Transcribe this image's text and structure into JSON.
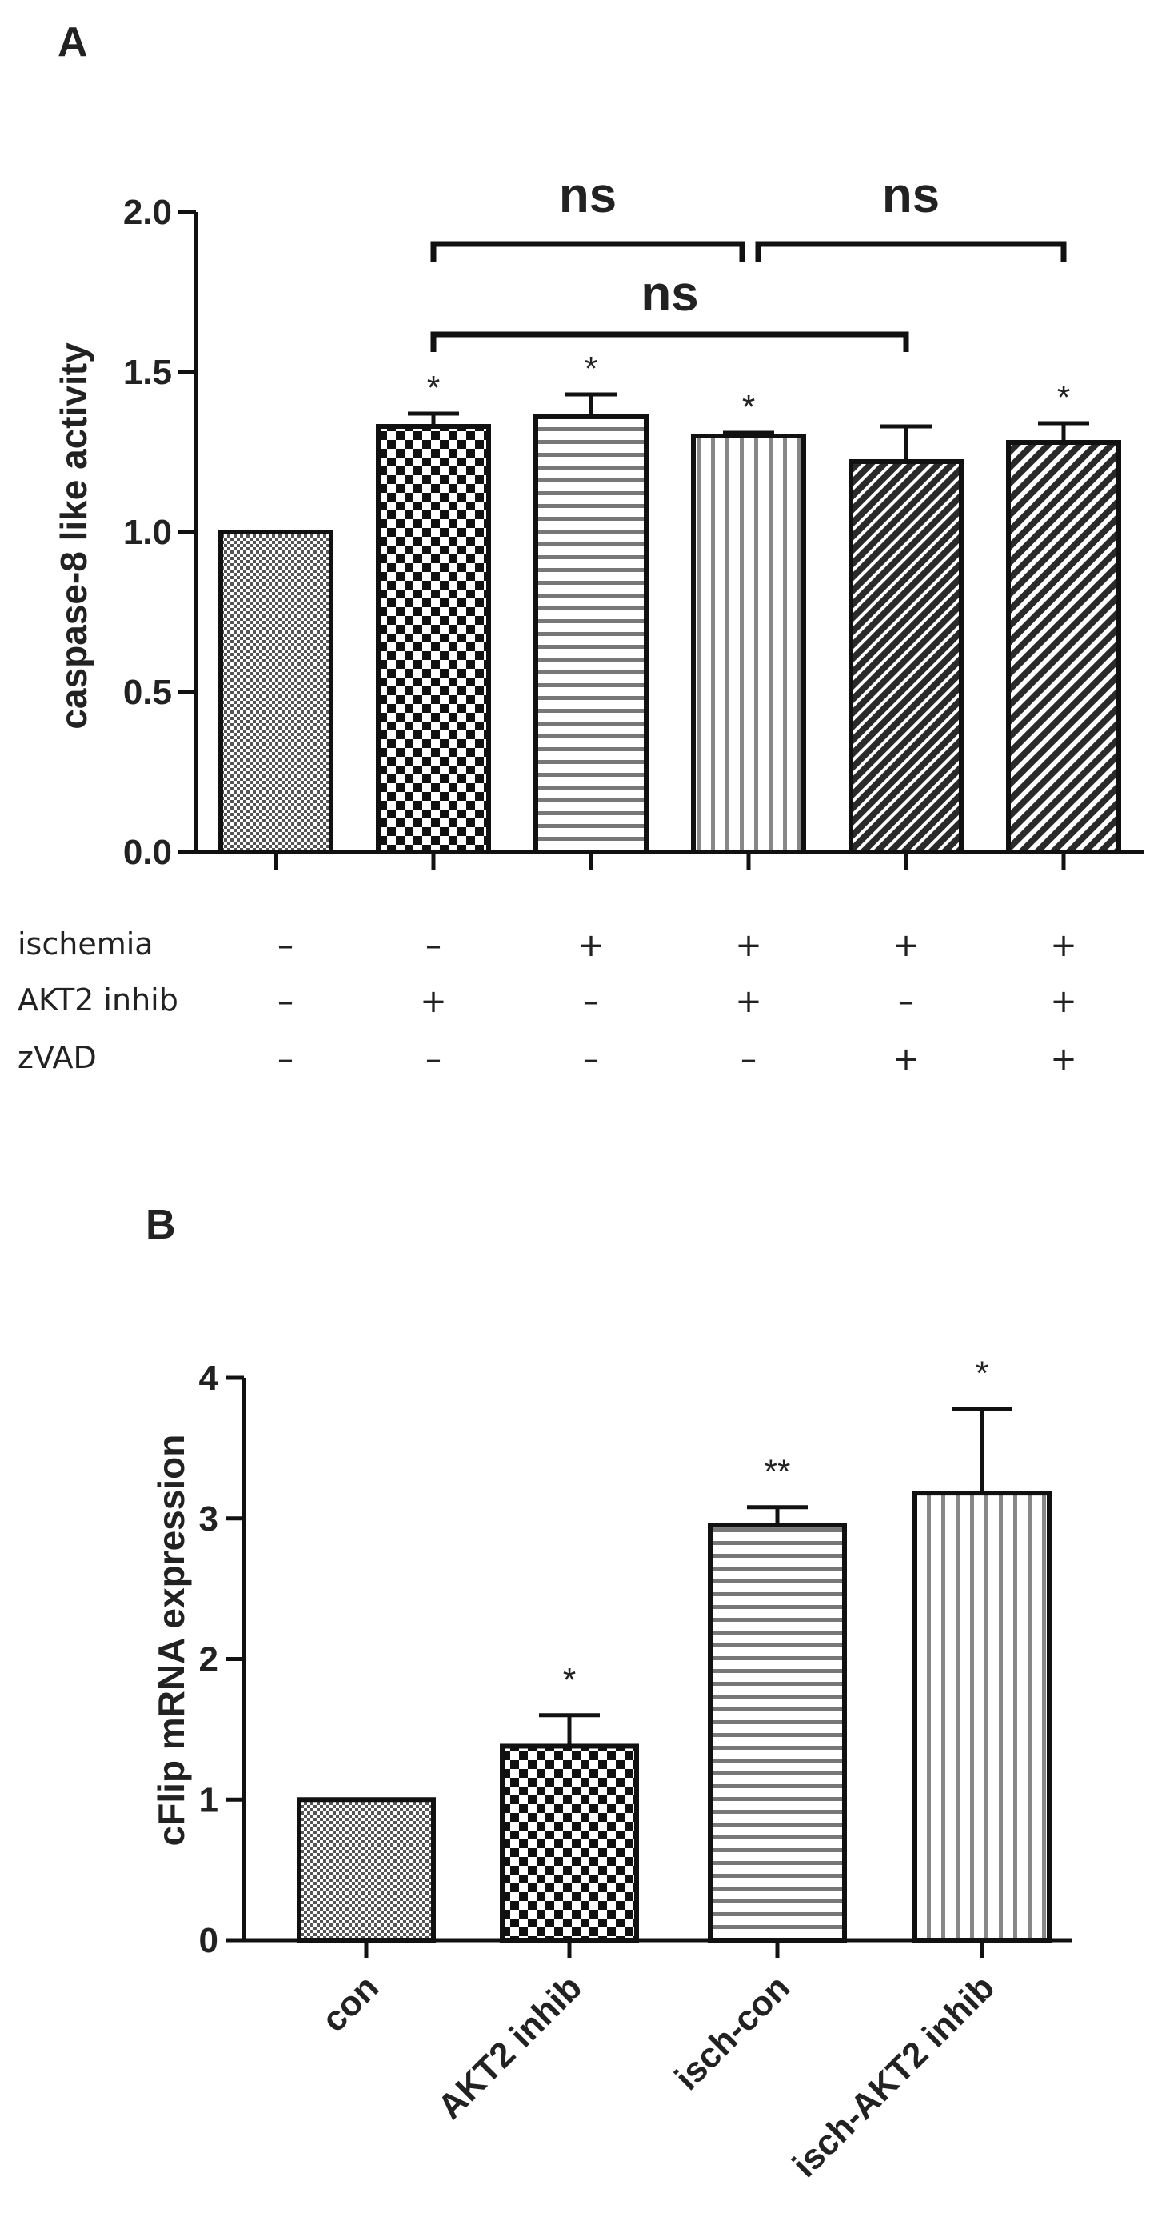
{
  "chart_data": [
    {
      "type": "bar",
      "panel": "A",
      "title": "",
      "ylabel": "caspase-8 like activity",
      "xlabel": "",
      "ylim": [
        0,
        2.0
      ],
      "yticks": [
        "0.0",
        "0.5",
        "1.0",
        "1.5",
        "2.0"
      ],
      "ytick_values": [
        0,
        0.5,
        1.0,
        1.5,
        2.0
      ],
      "values": [
        1.0,
        1.33,
        1.36,
        1.3,
        1.22,
        1.28
      ],
      "errors": [
        0,
        0.04,
        0.07,
        0.01,
        0.11,
        0.06
      ],
      "significance": [
        "",
        "*",
        "*",
        "*",
        "",
        "*"
      ],
      "conditions": {
        "labels": [
          "ischemia",
          "AKT2 inhib",
          "zVAD"
        ],
        "signs": [
          [
            "–",
            "–",
            "+",
            "+",
            "+",
            "+"
          ],
          [
            "–",
            "+",
            "–",
            "+",
            "–",
            "+"
          ],
          [
            "–",
            "–",
            "–",
            "–",
            "+",
            "+"
          ]
        ]
      },
      "comparisons": [
        {
          "from": 1,
          "to": 3,
          "label": "ns"
        },
        {
          "from": 3,
          "to": 5,
          "label": "ns"
        },
        {
          "from": 1,
          "to": 4,
          "label": "ns"
        }
      ]
    },
    {
      "type": "bar",
      "panel": "B",
      "title": "",
      "ylabel": "cFlip mRNA expression",
      "xlabel": "",
      "ylim": [
        0,
        4
      ],
      "yticks": [
        "0",
        "1",
        "2",
        "3",
        "4"
      ],
      "ytick_values": [
        0,
        1,
        2,
        3,
        4
      ],
      "categories": [
        "con",
        "AKT2 inhib",
        "isch-con",
        "isch-AKT2 inhib"
      ],
      "values": [
        1.0,
        1.38,
        2.95,
        3.18
      ],
      "errors": [
        0,
        0.22,
        0.13,
        0.6
      ],
      "significance": [
        "",
        "*",
        "**",
        "*"
      ]
    }
  ]
}
